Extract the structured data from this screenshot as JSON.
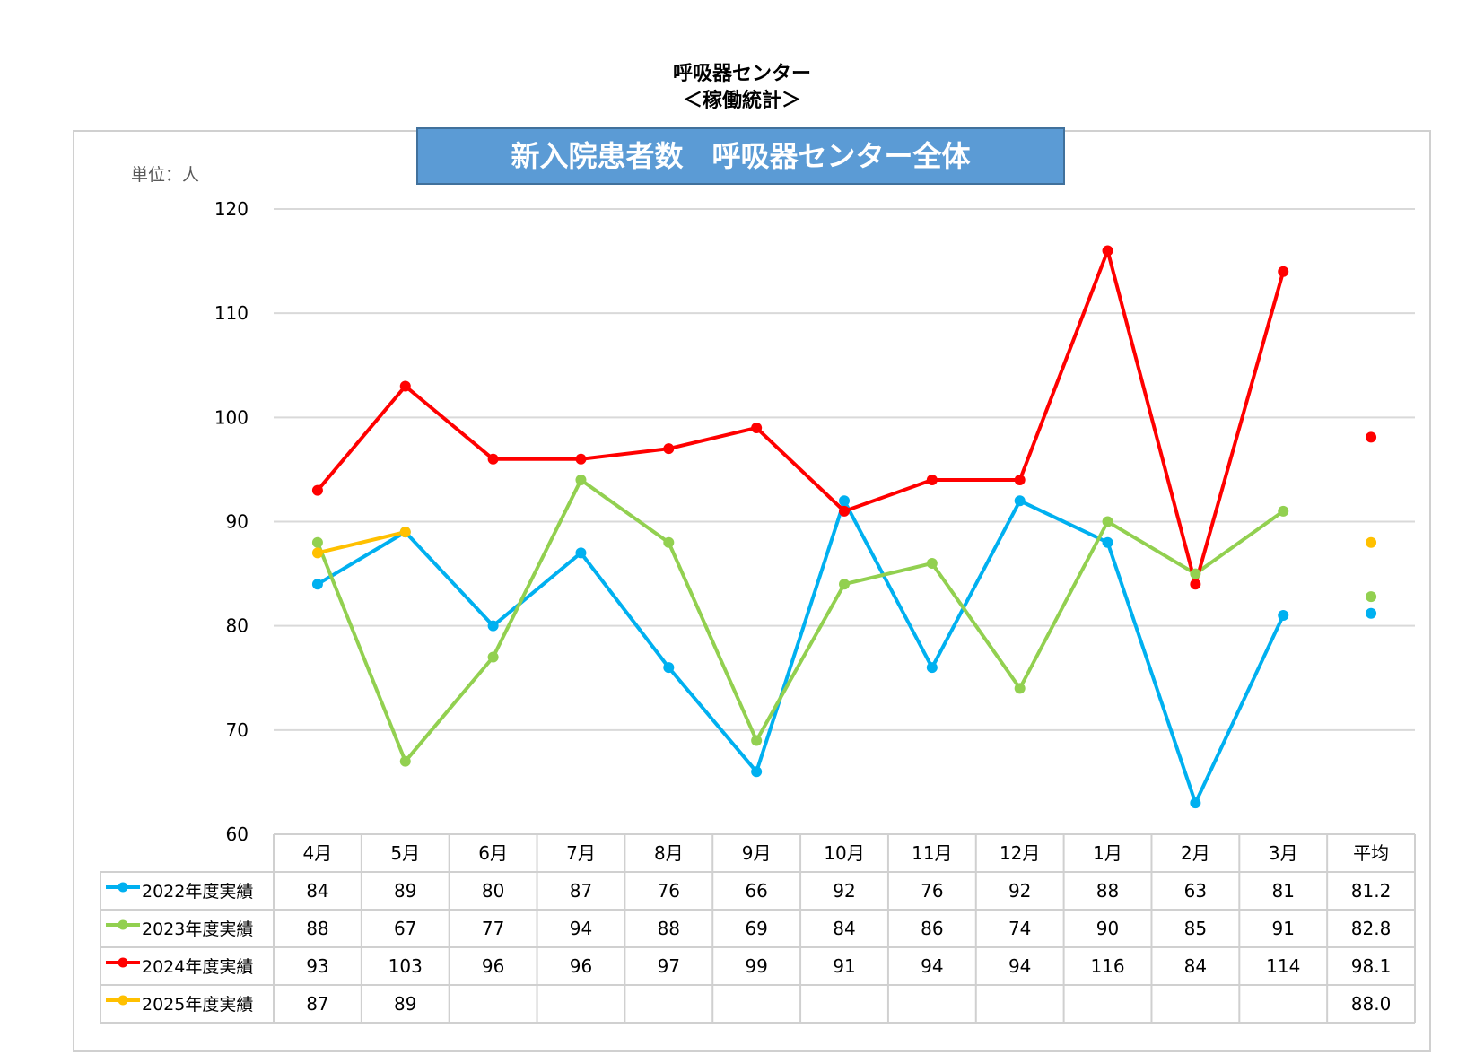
{
  "header": {
    "title_line1": "呼吸器センター",
    "title_line2": "＜稼働統計＞",
    "banner": "新入院患者数　呼吸器センター全体",
    "unit": "単位：人"
  },
  "chart_data": {
    "type": "line",
    "categories": [
      "4月",
      "5月",
      "6月",
      "7月",
      "8月",
      "9月",
      "10月",
      "11月",
      "12月",
      "1月",
      "2月",
      "3月"
    ],
    "average_label": "平均",
    "ylim": [
      60,
      120
    ],
    "yticks": [
      60,
      70,
      80,
      90,
      100,
      110,
      120
    ],
    "grid": true,
    "series": [
      {
        "name": "2022年度実績",
        "color": "#00b0f0",
        "values": [
          84,
          89,
          80,
          87,
          76,
          66,
          92,
          76,
          92,
          88,
          63,
          81
        ],
        "average": 81.2
      },
      {
        "name": "2023年度実績",
        "color": "#92d050",
        "values": [
          88,
          67,
          77,
          94,
          88,
          69,
          84,
          86,
          74,
          90,
          85,
          91
        ],
        "average": 82.8
      },
      {
        "name": "2024年度実績",
        "color": "#ff0000",
        "values": [
          93,
          103,
          96,
          96,
          97,
          99,
          91,
          94,
          94,
          116,
          84,
          114
        ],
        "average": 98.1
      },
      {
        "name": "2025年度実績",
        "color": "#ffc000",
        "values": [
          87,
          89,
          null,
          null,
          null,
          null,
          null,
          null,
          null,
          null,
          null,
          null
        ],
        "average": 88.0
      }
    ]
  }
}
